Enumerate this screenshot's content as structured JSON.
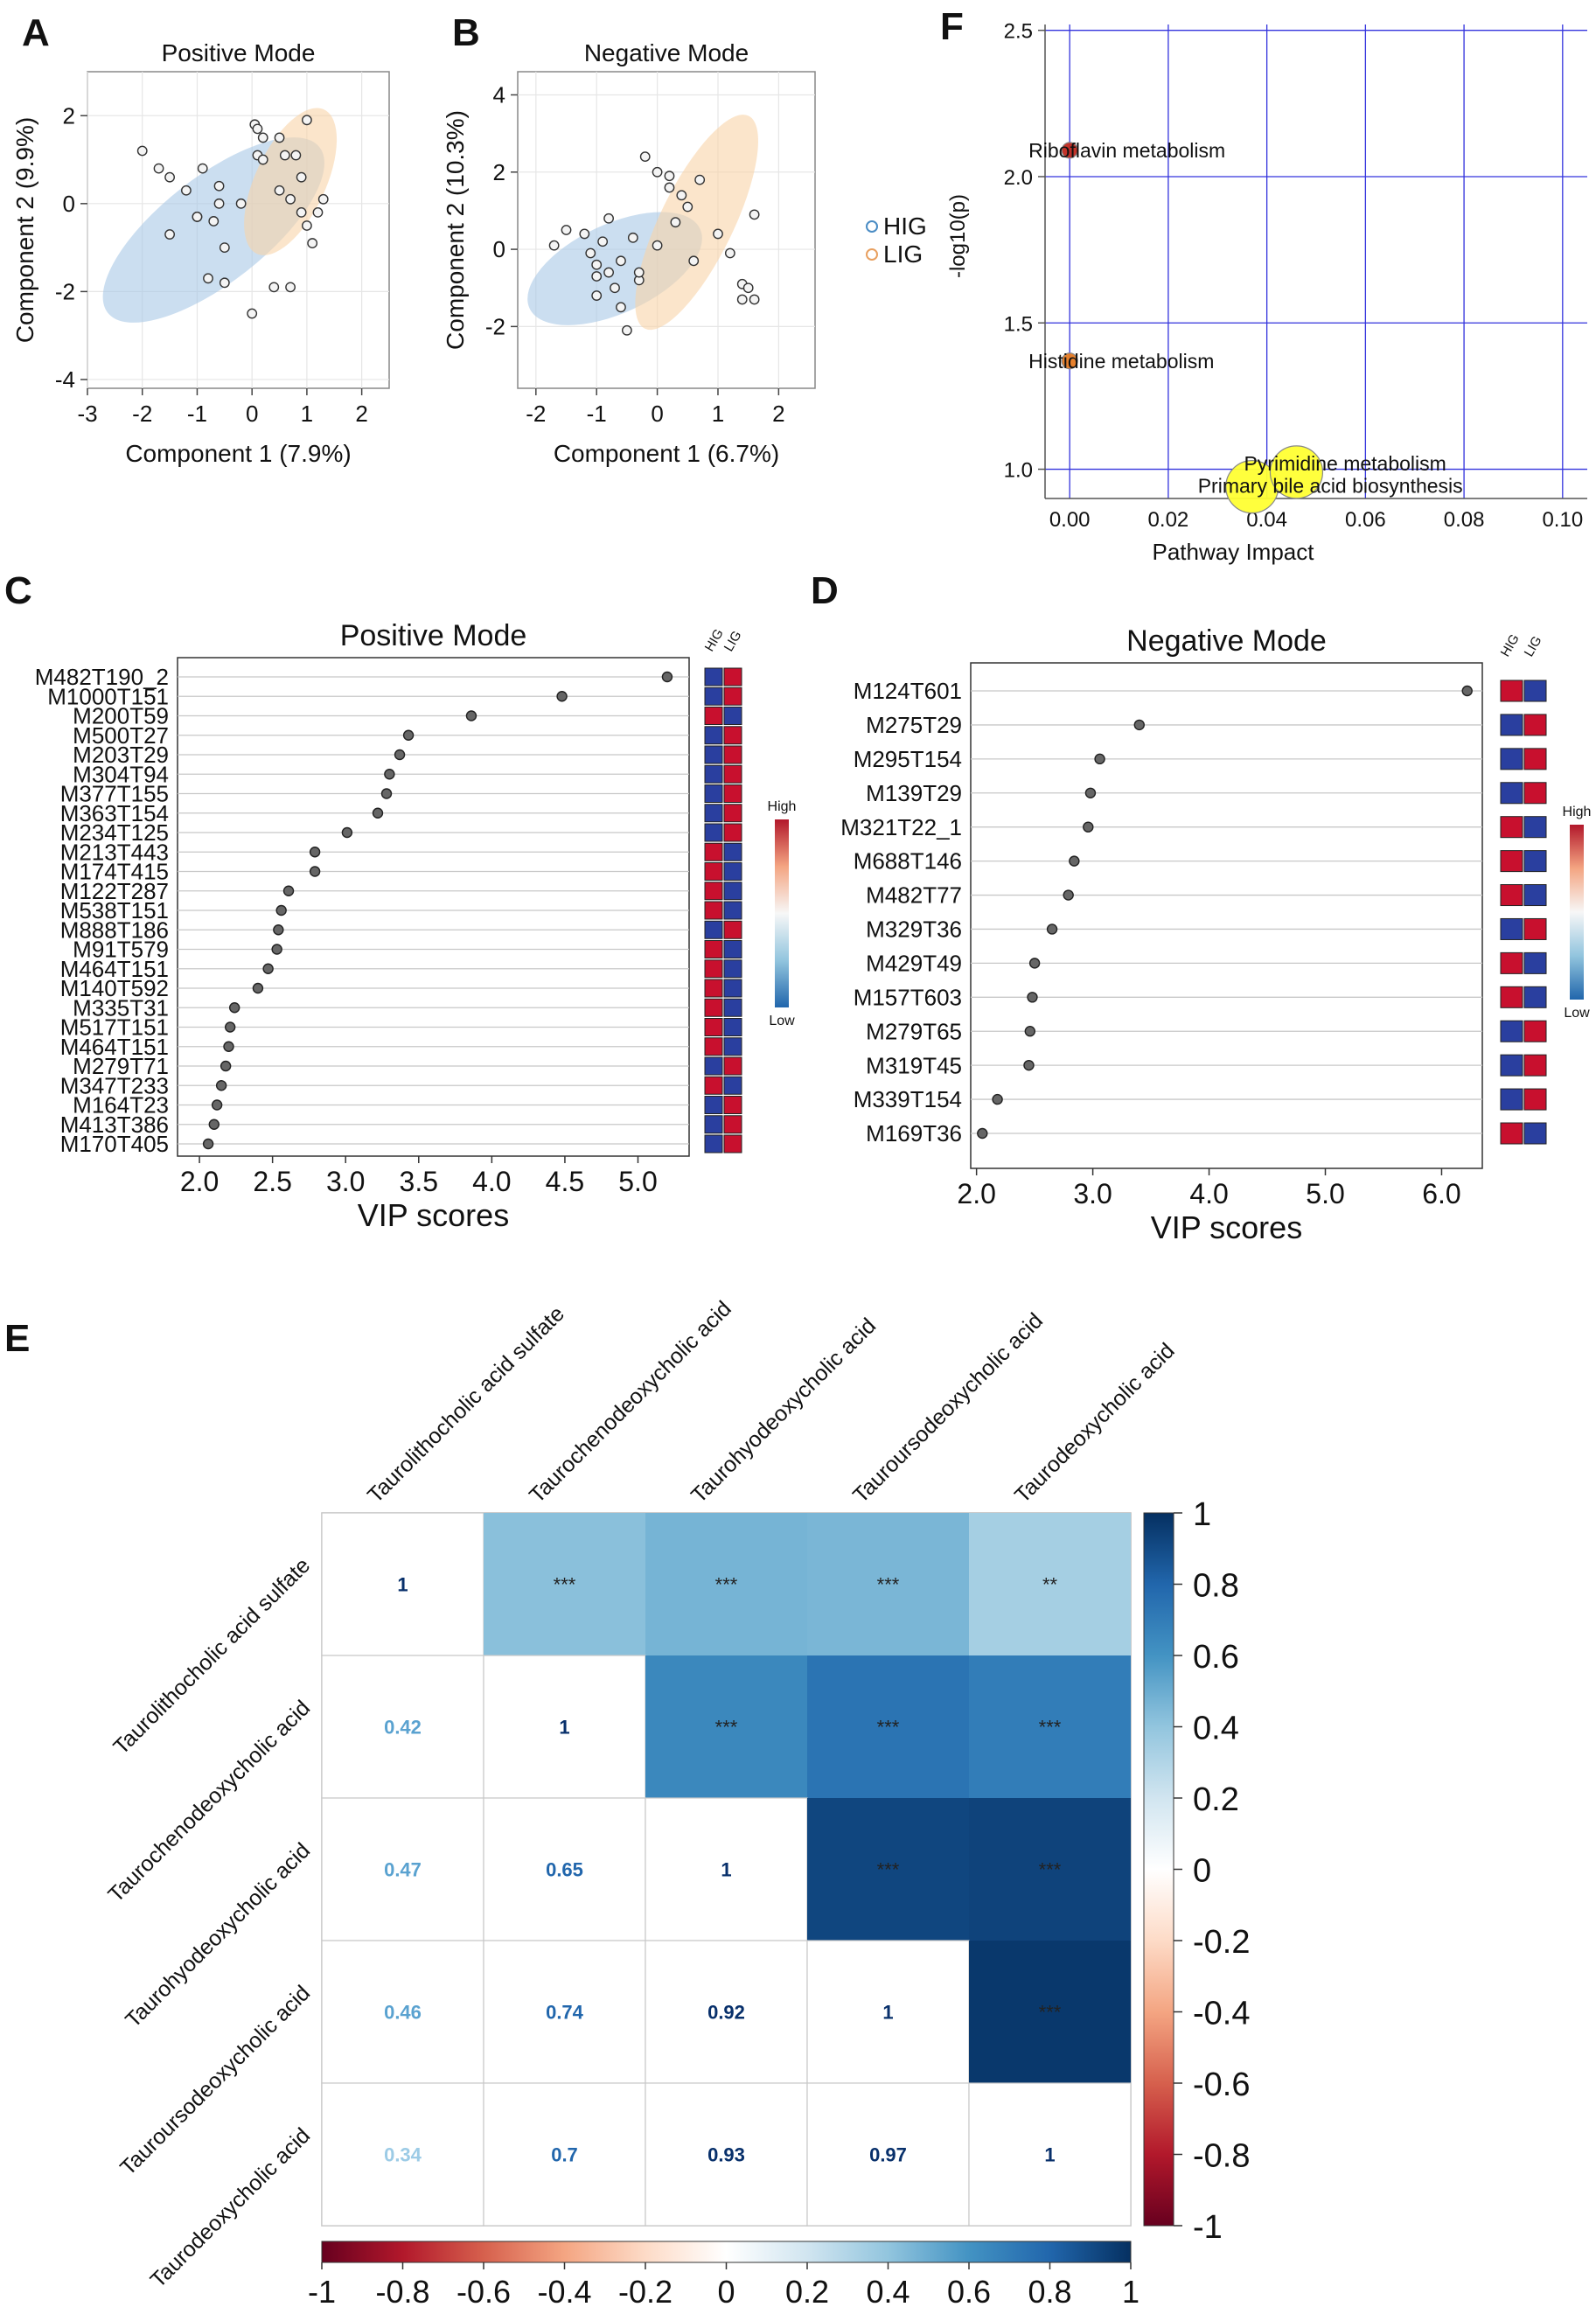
{
  "chart_data": [
    {
      "id": "A",
      "panel_label": "A",
      "type": "scatter",
      "title": "Positive Mode",
      "xlabel": "Component 1 (7.9%)",
      "ylabel": "Component 2 (9.9%)",
      "xlim": [
        -3,
        2.5
      ],
      "ylim": [
        -4.2,
        3
      ],
      "xticks": [
        "-3",
        "-2",
        "-1",
        "0",
        "1",
        "2"
      ],
      "yticks": [
        "-4",
        "-2",
        "0",
        "2"
      ],
      "groups": [
        {
          "name": "HIG",
          "color": "#a9c8e6",
          "ellipse": {
            "cx": -0.7,
            "cy": -0.6,
            "rx": 2.45,
            "ry": 1.2,
            "angle_deg": -38
          },
          "x": [
            -2.0,
            -1.7,
            -1.5,
            -1.2,
            -1.0,
            -0.9,
            -0.6,
            -0.6,
            -0.7,
            -0.5,
            -0.2,
            -0.8,
            -0.5,
            0.0,
            0.4,
            0.7,
            -1.5,
            -1.0
          ],
          "y": [
            1.2,
            0.8,
            -0.7,
            0.3,
            -0.3,
            0.8,
            0.4,
            0.0,
            -0.4,
            -1.0,
            0.0,
            -1.7,
            -1.8,
            -2.5,
            -1.9,
            -1.9,
            0.6,
            -0.3
          ]
        },
        {
          "name": "LIG",
          "color": "#f8d3a8",
          "ellipse": {
            "cx": 0.7,
            "cy": 0.5,
            "rx": 1.45,
            "ry": 0.8,
            "angle_deg": -65
          },
          "x": [
            0.05,
            0.1,
            0.2,
            0.1,
            0.5,
            0.6,
            0.8,
            1.0,
            0.5,
            0.7,
            0.9,
            1.0,
            1.3,
            1.1,
            1.2,
            0.9,
            0.2
          ],
          "y": [
            1.8,
            1.7,
            1.5,
            1.1,
            1.5,
            1.1,
            1.1,
            1.9,
            0.3,
            0.1,
            -0.2,
            -0.5,
            0.1,
            -0.9,
            -0.2,
            0.6,
            1.0
          ]
        }
      ]
    },
    {
      "id": "B",
      "panel_label": "B",
      "type": "scatter",
      "title": "Negative Mode",
      "xlabel": "Component 1 (6.7%)",
      "ylabel": "Component 2 (10.3%)",
      "xlim": [
        -2.3,
        2.6
      ],
      "ylim": [
        -3.6,
        4.6
      ],
      "xticks": [
        "-2",
        "-1",
        "0",
        "1",
        "2"
      ],
      "yticks": [
        "-2",
        "0",
        "2",
        "4"
      ],
      "groups": [
        {
          "name": "HIG",
          "color": "#a9c8e6",
          "ellipse": {
            "cx": -0.7,
            "cy": -0.5,
            "rx": 1.55,
            "ry": 1.15,
            "angle_deg": -25
          },
          "x": [
            -1.7,
            -1.5,
            -1.2,
            -1.1,
            -1.0,
            -0.9,
            -1.0,
            -0.8,
            -0.7,
            -0.6,
            -0.5,
            -0.4,
            -0.3,
            -0.8,
            -0.6,
            -1.0,
            -0.3
          ],
          "y": [
            0.1,
            0.5,
            0.4,
            -0.1,
            -0.4,
            0.2,
            -0.7,
            -0.6,
            -1.0,
            -1.5,
            -2.1,
            0.3,
            -0.8,
            0.8,
            -0.3,
            -1.2,
            -0.6
          ]
        },
        {
          "name": "LIG",
          "color": "#f8d3a8",
          "ellipse": {
            "cx": 0.65,
            "cy": 0.7,
            "rx": 1.95,
            "ry": 0.95,
            "angle_deg": -64
          },
          "x": [
            -0.2,
            0.0,
            0.2,
            0.2,
            0.4,
            0.5,
            0.3,
            0.0,
            0.6,
            1.0,
            1.2,
            1.4,
            1.5,
            1.4,
            1.6,
            1.6,
            0.7
          ],
          "y": [
            2.4,
            2.0,
            1.9,
            1.6,
            1.4,
            1.1,
            0.7,
            0.1,
            -0.3,
            0.4,
            -0.1,
            -0.9,
            -1.0,
            -1.3,
            0.9,
            -1.3,
            1.8
          ]
        }
      ],
      "legend": [
        "HIG",
        "LIG"
      ]
    },
    {
      "id": "C",
      "panel_label": "C",
      "type": "scatter",
      "title": "Positive Mode",
      "xlabel": "VIP scores",
      "xlim": [
        1.85,
        5.35
      ],
      "xticks": [
        "2.0",
        "2.5",
        "3.0",
        "3.5",
        "4.0",
        "4.5",
        "5.0"
      ],
      "categories": [
        "M482T190_2",
        "M1000T151",
        "M200T59",
        "M500T27",
        "M203T29",
        "M304T94",
        "M377T155",
        "M363T154",
        "M234T125",
        "M213T443",
        "M174T415",
        "M122T287",
        "M538T151",
        "M888T186",
        "M91T579",
        "M464T151",
        "M140T592",
        "M335T31",
        "M517T151",
        "M464T151",
        "M279T71",
        "M347T233",
        "M164T23",
        "M413T386",
        "M170T405"
      ],
      "values": [
        5.2,
        4.48,
        3.86,
        3.43,
        3.37,
        3.3,
        3.28,
        3.22,
        3.01,
        2.79,
        2.79,
        2.61,
        2.56,
        2.54,
        2.53,
        2.47,
        2.4,
        2.24,
        2.21,
        2.2,
        2.18,
        2.15,
        2.12,
        2.1,
        2.06
      ],
      "heat_header": [
        "HIG",
        "LIG"
      ],
      "heat_levels": [
        [
          "Low",
          "High"
        ],
        [
          "Low",
          "High"
        ],
        [
          "High",
          "Low"
        ],
        [
          "Low",
          "High"
        ],
        [
          "Low",
          "High"
        ],
        [
          "Low",
          "High"
        ],
        [
          "Low",
          "High"
        ],
        [
          "Low",
          "High"
        ],
        [
          "Low",
          "High"
        ],
        [
          "High",
          "Low"
        ],
        [
          "High",
          "Low"
        ],
        [
          "High",
          "Low"
        ],
        [
          "High",
          "Low"
        ],
        [
          "Low",
          "High"
        ],
        [
          "High",
          "Low"
        ],
        [
          "High",
          "Low"
        ],
        [
          "High",
          "Low"
        ],
        [
          "High",
          "Low"
        ],
        [
          "High",
          "Low"
        ],
        [
          "High",
          "Low"
        ],
        [
          "Low",
          "High"
        ],
        [
          "High",
          "Low"
        ],
        [
          "Low",
          "High"
        ],
        [
          "Low",
          "High"
        ],
        [
          "Low",
          "High"
        ]
      ],
      "colorbar": {
        "high": "High",
        "low": "Low"
      }
    },
    {
      "id": "D",
      "panel_label": "D",
      "type": "scatter",
      "title": "Negative Mode",
      "xlabel": "VIP scores",
      "xlim": [
        1.95,
        6.35
      ],
      "xticks": [
        "2.0",
        "3.0",
        "4.0",
        "5.0",
        "6.0"
      ],
      "categories": [
        "M124T601",
        "M275T29",
        "M295T154",
        "M139T29",
        "M321T22_1",
        "M688T146",
        "M482T77",
        "M329T36",
        "M429T49",
        "M157T603",
        "M279T65",
        "M319T45",
        "M339T154",
        "M169T36"
      ],
      "values": [
        6.22,
        3.4,
        3.06,
        2.98,
        2.96,
        2.84,
        2.79,
        2.65,
        2.5,
        2.48,
        2.46,
        2.45,
        2.18,
        2.05
      ],
      "heat_header": [
        "HIG",
        "LIG"
      ],
      "heat_levels": [
        [
          "High",
          "Low"
        ],
        [
          "Low",
          "High"
        ],
        [
          "Low",
          "High"
        ],
        [
          "Low",
          "High"
        ],
        [
          "High",
          "Low"
        ],
        [
          "High",
          "Low"
        ],
        [
          "High",
          "Low"
        ],
        [
          "Low",
          "High"
        ],
        [
          "High",
          "Low"
        ],
        [
          "High",
          "Low"
        ],
        [
          "Low",
          "High"
        ],
        [
          "Low",
          "High"
        ],
        [
          "Low",
          "High"
        ],
        [
          "High",
          "Low"
        ]
      ],
      "colorbar": {
        "high": "High",
        "low": "Low"
      }
    },
    {
      "id": "E",
      "panel_label": "E",
      "type": "heatmap",
      "variables": [
        "Taurolithocholic acid sulfate",
        "Taurochenodeoxycholic acid",
        "Taurohyodeoxycholic acid",
        "Tauroursodeoxycholic acid",
        "Taurodeoxycholic acid"
      ],
      "matrix": [
        [
          1,
          0.42,
          0.47,
          0.46,
          0.34
        ],
        [
          0.42,
          1,
          0.65,
          0.74,
          0.7
        ],
        [
          0.47,
          0.65,
          1,
          0.92,
          0.93
        ],
        [
          0.46,
          0.74,
          0.92,
          1,
          0.97
        ],
        [
          0.34,
          0.7,
          0.93,
          0.97,
          1
        ]
      ],
      "lower_labels": [
        [
          "1",
          "",
          "",
          "",
          ""
        ],
        [
          "0.42",
          "1",
          "",
          "",
          ""
        ],
        [
          "0.47",
          "0.65",
          "1",
          "",
          ""
        ],
        [
          "0.46",
          "0.74",
          "0.92",
          "1",
          ""
        ],
        [
          "0.34",
          "0.7",
          "0.93",
          "0.97",
          "1"
        ]
      ],
      "significance": [
        [
          "",
          "***",
          "***",
          "***",
          "**"
        ],
        [
          "",
          "",
          "***",
          "***",
          "***"
        ],
        [
          "",
          "",
          "",
          "***",
          "***"
        ],
        [
          "",
          "",
          "",
          "",
          "***"
        ],
        [
          "",
          "",
          "",
          "",
          ""
        ]
      ],
      "colorbar_ticks": [
        "1",
        "0.8",
        "0.6",
        "0.4",
        "0.2",
        "0",
        "-0.2",
        "-0.4",
        "-0.6",
        "-0.8",
        "-1"
      ],
      "bottom_ticks": [
        "-1",
        "-0.8",
        "-0.6",
        "-0.4",
        "-0.2",
        "0",
        "0.2",
        "0.4",
        "0.6",
        "0.8",
        "1"
      ]
    },
    {
      "id": "F",
      "panel_label": "F",
      "type": "scatter",
      "xlabel": "Pathway Impact",
      "ylabel": "-log10(p)",
      "xlim": [
        -0.005,
        0.105
      ],
      "ylim": [
        0.9,
        2.52
      ],
      "xticks": [
        "0.00",
        "0.02",
        "0.04",
        "0.06",
        "0.08",
        "0.10"
      ],
      "yticks": [
        "1.0",
        "1.5",
        "2.0",
        "2.5"
      ],
      "pathways": [
        {
          "name": "Riboflavin metabolism",
          "impact": 0.0,
          "neglog10p": 2.09,
          "color": "#c0281e",
          "size": 9
        },
        {
          "name": "Histidine metabolism",
          "impact": 0.0,
          "neglog10p": 1.37,
          "color": "#e67a22",
          "size": 9
        },
        {
          "name": "Pyrimidine metabolism",
          "impact": 0.046,
          "neglog10p": 0.99,
          "color": "#ffff33",
          "size": 30
        },
        {
          "name": "Primary bile acid biosynthesis",
          "impact": 0.037,
          "neglog10p": 0.94,
          "color": "#ffff33",
          "size": 30
        }
      ]
    }
  ]
}
